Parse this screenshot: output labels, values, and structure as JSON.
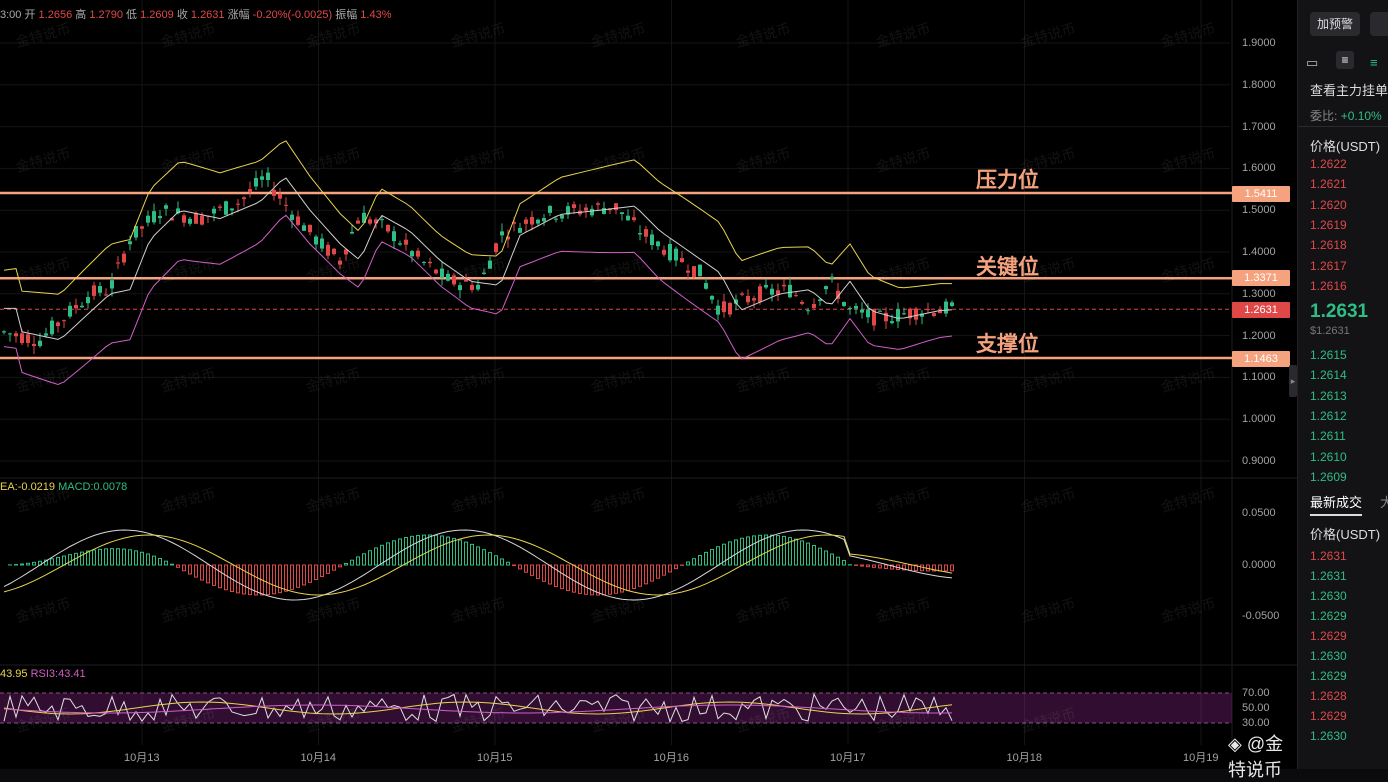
{
  "ohlc_bar": {
    "time": "3:00",
    "open_label": "开",
    "open": "1.2656",
    "high_label": "高",
    "high": "1.2790",
    "low_label": "低",
    "low": "1.2609",
    "close_label": "收",
    "close": "1.2631",
    "change_label": "涨幅",
    "change": "-0.20%(-0.0025)",
    "amplitude_label": "振幅",
    "amplitude": "1.43%"
  },
  "levels": {
    "resistance": {
      "label": "压力位",
      "price": "1.5411"
    },
    "key": {
      "label": "关键位",
      "price": "1.3371"
    },
    "current": {
      "price": "1.2631"
    },
    "support": {
      "label": "支撑位",
      "price": "1.1463"
    }
  },
  "price_axis": [
    "1.9000",
    "1.8000",
    "1.7000",
    "1.6000",
    "1.5000",
    "1.4000",
    "1.3000",
    "1.2000",
    "1.1000",
    "1.0000",
    "0.9000"
  ],
  "macd": {
    "dea_label": "EA:-0.0219",
    "macd_label": "MACD:0.0078",
    "ticks": [
      "0.0500",
      "0.0000",
      "-0.0500"
    ]
  },
  "rsi": {
    "rsi1_label": "43.95",
    "rsi3_label": "RSI3:43.41",
    "ticks": [
      "70.00",
      "50.00",
      "30.00"
    ]
  },
  "x_axis": [
    "10月13",
    "10月14",
    "10月15",
    "10月16",
    "10月17",
    "10月18",
    "10月19"
  ],
  "watermark": "金特说币",
  "brand": "◈ @金特说币",
  "panel": {
    "alert_button": "加预警",
    "depth_title": "查看主力挂单",
    "ratio_label": "委比:",
    "ratio_value": "+0.10%",
    "price_header": "价格(USDT)",
    "asks": [
      "1.2622",
      "1.2621",
      "1.2620",
      "1.2619",
      "1.2618",
      "1.2617",
      "1.2616"
    ],
    "last_price": "1.2631",
    "last_price_usd": "$1.2631",
    "bids": [
      "1.2615",
      "1.2614",
      "1.2613",
      "1.2612",
      "1.2611",
      "1.2610",
      "1.2609"
    ],
    "trades_title": "最新成交",
    "trades_header": "价格(USDT)",
    "trades": [
      {
        "p": "1.2631",
        "c": "red"
      },
      {
        "p": "1.2631",
        "c": "green"
      },
      {
        "p": "1.2630",
        "c": "green"
      },
      {
        "p": "1.2629",
        "c": "green"
      },
      {
        "p": "1.2629",
        "c": "red"
      },
      {
        "p": "1.2630",
        "c": "green"
      },
      {
        "p": "1.2629",
        "c": "green"
      },
      {
        "p": "1.2628",
        "c": "red"
      },
      {
        "p": "1.2629",
        "c": "red"
      },
      {
        "p": "1.2630",
        "c": "green"
      }
    ]
  },
  "colors": {
    "up": "#2ebd85",
    "down": "#e04848",
    "level": "#f5a27e",
    "upper_band": "#e8d44d",
    "lower_band": "#d05fc8",
    "mid_band": "#d0d0d0"
  }
}
